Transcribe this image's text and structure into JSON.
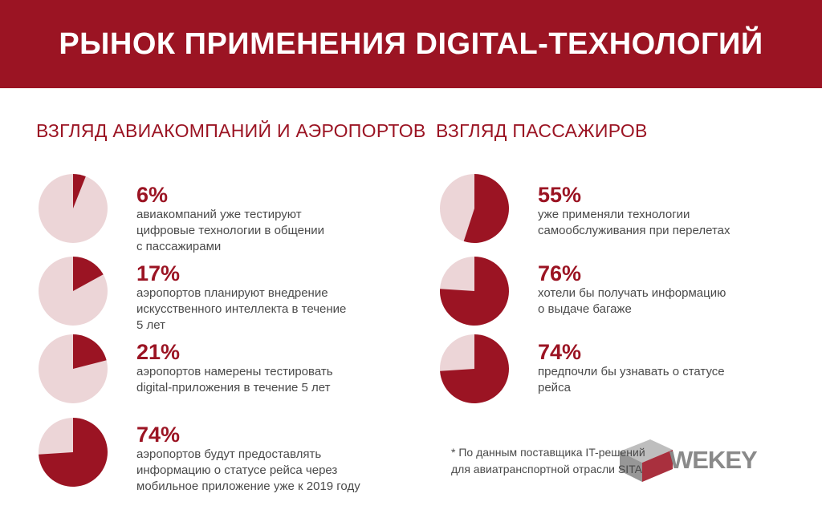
{
  "header": {
    "title": "РЫНОК ПРИМЕНЕНИЯ DIGITAL-ТЕХНОЛОГИЙ"
  },
  "colors": {
    "brand": "#9b1423",
    "pie_base": "#ecd5d7",
    "text": "#4a4a4a"
  },
  "left": {
    "title": "ВЗГЛЯД АВИАКОМПАНИЙ И АЭРОПОРТОВ",
    "items": [
      {
        "pct": "6%",
        "desc": "авиакомпаний уже тестируют\nцифровые технологии в общении\nс пассажирами"
      },
      {
        "pct": "17%",
        "desc": "аэропортов планируют внедрение\nискусственного интеллекта в течение\n5 лет"
      },
      {
        "pct": "21%",
        "desc": "аэропортов намерены тестировать\ndigital-приложения в течение 5 лет"
      },
      {
        "pct": "74%",
        "desc": "аэропортов будут предоставлять\nинформацию о статусе рейса через\nмобильное приложение уже к 2019 году"
      }
    ]
  },
  "right": {
    "title": "ВЗГЛЯД ПАССАЖИРОВ",
    "items": [
      {
        "pct": "55%",
        "desc": "уже применяли технологии\nсамообслуживания при перелетах"
      },
      {
        "pct": "76%",
        "desc": "хотели бы получать информацию\nо выдаче багаже"
      },
      {
        "pct": "74%",
        "desc": "предпочли бы узнавать о статусе\nрейса"
      }
    ]
  },
  "footnote": "* По данным поставщика IT-решений\nдля авиатранспортной отрасли SITA",
  "logo": {
    "text": "WEKEY"
  },
  "chart_data": [
    {
      "type": "pie",
      "values": [
        6,
        94
      ],
      "categories": [
        "6%",
        ""
      ]
    },
    {
      "type": "pie",
      "values": [
        17,
        83
      ],
      "categories": [
        "17%",
        ""
      ]
    },
    {
      "type": "pie",
      "values": [
        21,
        79
      ],
      "categories": [
        "21%",
        ""
      ]
    },
    {
      "type": "pie",
      "values": [
        74,
        26
      ],
      "categories": [
        "74%",
        ""
      ]
    },
    {
      "type": "pie",
      "values": [
        55,
        45
      ],
      "categories": [
        "55%",
        ""
      ]
    },
    {
      "type": "pie",
      "values": [
        76,
        24
      ],
      "categories": [
        "76%",
        ""
      ]
    },
    {
      "type": "pie",
      "values": [
        74,
        26
      ],
      "categories": [
        "74%",
        ""
      ]
    }
  ]
}
